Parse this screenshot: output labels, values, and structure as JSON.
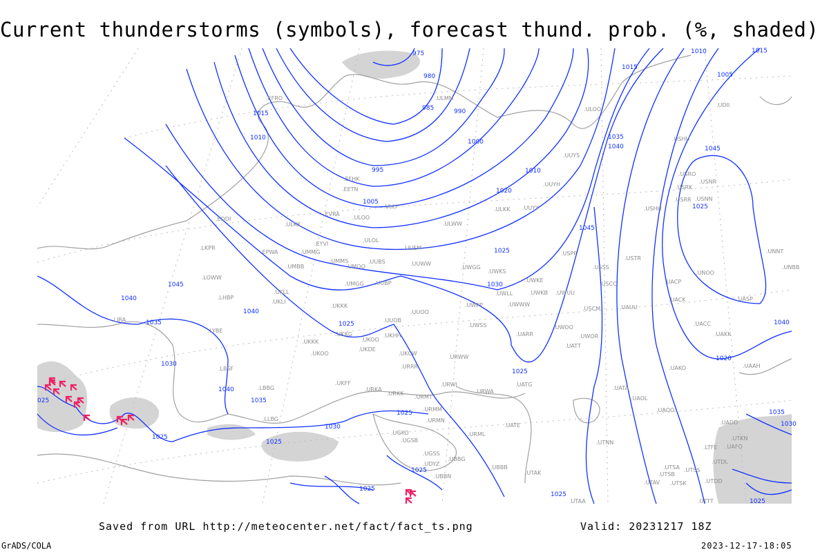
{
  "title": "Current thunderstorms (symbols), forecast thund. prob. (%, shaded)",
  "footer": {
    "saved_from": "Saved from URL http://meteocenter.net/fact/fact_ts.png",
    "valid": "Valid: 20231217 18Z",
    "software": "GrADS/COLA",
    "timestamp": "2023-12-17-18:05"
  },
  "colors": {
    "isobars": "#1030ff",
    "coastlines": "#a0a0a0",
    "thunderstorm_symbols": "#ee2266",
    "shading": "#d4d4d4"
  },
  "isobar_labels": [
    "975",
    "980",
    "985",
    "990",
    "995",
    "1000",
    "1005",
    "1010",
    "1015",
    "1020",
    "1025",
    "1030",
    "1035",
    "1040",
    "1045",
    "1010",
    "1015",
    "1005",
    "1010",
    "1015",
    "1020",
    "1025",
    "1025",
    "1040",
    "1045",
    "1045",
    "1040",
    "1040",
    "1035",
    "1025",
    "1030",
    "1035",
    "1040",
    "1025",
    "1025",
    "1025",
    "1025",
    "1025",
    "1030",
    "1025",
    "1035",
    "1030",
    "1025",
    "025"
  ],
  "stations": [
    "ULOO",
    "UDII",
    "USHU",
    "UUYS",
    "UUYH",
    "ULKK",
    "UUYY",
    "USRO",
    "USRK",
    "USNR",
    "USRR",
    "USNN",
    "USHH",
    "USPP",
    "UWKS",
    "USSS",
    "USTR",
    "UNOO",
    "UNNT",
    "UNBB",
    "UWKE",
    "UWKB",
    "UWUU",
    "USCC",
    "UACP",
    "UWLL",
    "UWWW",
    "USCM",
    "UAUU",
    "UACK",
    "UASP",
    "UWOO",
    "UWOR",
    "UARR",
    "UACC",
    "UAKK",
    "UATT",
    "UAKO",
    "UAAH",
    "EDDI",
    "ULKK",
    "EVRA",
    "ULOO",
    "ULWW",
    "LKPR",
    "EPWA",
    "UMMG",
    "EYVI",
    "ULOL",
    "UUEM",
    "UMBB",
    "UMMS",
    "UMOO",
    "UUBS",
    "UUWW",
    "UWGG",
    "LOWW",
    "UMGG",
    "UUBP",
    "LHBP",
    "UKLL",
    "UKLI",
    "UKKK",
    "UUOO",
    "UWPP",
    "LYBE",
    "UKKG",
    "UKOO",
    "UKHH",
    "UUOB",
    "UWSS",
    "UKKK",
    "UKOO",
    "UKDE",
    "UKCW",
    "URWW",
    "LBSF",
    "URRR",
    "UKFF",
    "URKA",
    "LBBG",
    "URKK",
    "URWI",
    "URMT",
    "URWA",
    "UATG",
    "URMM",
    "URMN",
    "UATE",
    "URML",
    "UGKO",
    "UGSB",
    "UGSS",
    "UBBB",
    "UBBG",
    "UDYZ",
    "UBBN",
    "UTAK",
    "UTAA",
    "UATA",
    "UAOL",
    "UAOO",
    "UADD",
    "UTNN",
    "UTSA",
    "UTSB",
    "UTSS",
    "UTAV",
    "UTSK",
    "UTDD",
    "UTDL",
    "UAFO",
    "UTKN",
    "UTTT",
    "LTFE",
    "LLBG",
    "EFHK",
    "EETN",
    "ULLI",
    "ULMM",
    "LIRA",
    "EFRO"
  ],
  "thunderstorm_count": 16
}
